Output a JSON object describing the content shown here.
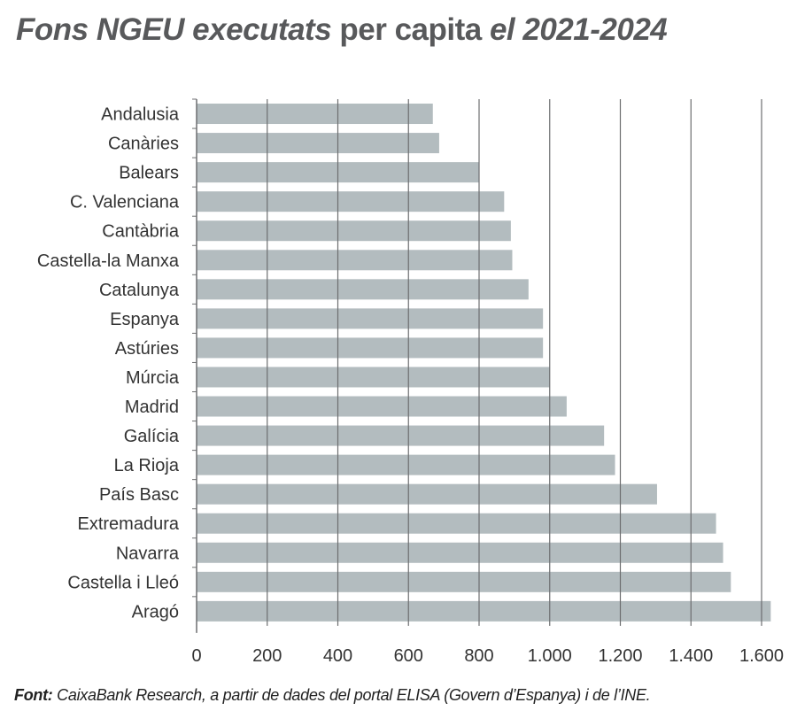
{
  "title": {
    "part1": "Fons NGEU executats",
    "part2": " per capita ",
    "part3": "el 2021-2024"
  },
  "source": {
    "label": "Font:",
    "text": " CaixaBank Research, a partir de dades del portal ELISA (Govern d’Espanya) i de l’INE."
  },
  "colors": {
    "bar": "#b3bcbf",
    "grid": "#6d6e70",
    "title": "#58595b"
  },
  "chart_data": {
    "type": "bar",
    "orientation": "horizontal",
    "categories": [
      "Andalusia",
      "Canàries",
      "Balears",
      "C. Valenciana",
      "Cantàbria",
      "Castella-la Manxa",
      "Catalunya",
      "Espanya",
      "Astúries",
      "Múrcia",
      "Madrid",
      "Galícia",
      "La Rioja",
      "País Basc",
      "Extremadura",
      "Navarra",
      "Castella i Lleó",
      "Aragó"
    ],
    "values": [
      669,
      687,
      801,
      871,
      890,
      894,
      940,
      981,
      981,
      1000,
      1048,
      1154,
      1185,
      1304,
      1471,
      1491,
      1513,
      1626
    ],
    "xlim": [
      0,
      1600
    ],
    "xticks": [
      0,
      200,
      400,
      600,
      800,
      1000,
      1200,
      1400,
      1600
    ],
    "xtick_labels": [
      "0",
      "200",
      "400",
      "600",
      "800",
      "1.000",
      "1.200",
      "1.400",
      "1.600"
    ],
    "grid": "vertical"
  }
}
